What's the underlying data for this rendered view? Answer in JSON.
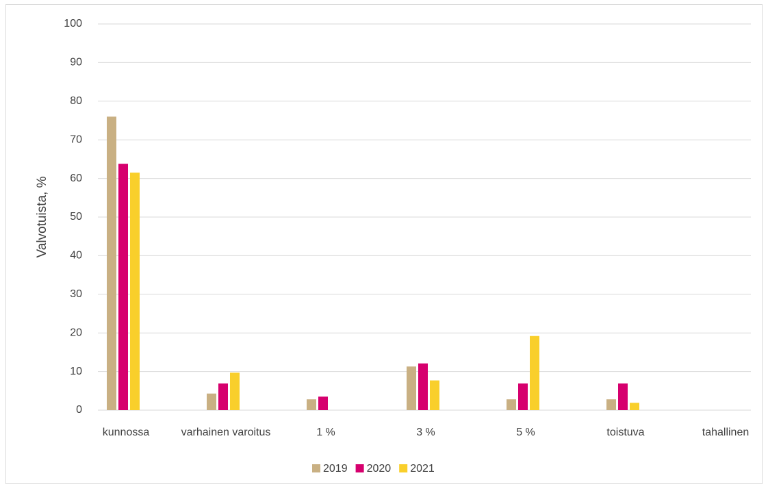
{
  "chart_data": {
    "type": "bar",
    "y_label": "Valvotuista, %",
    "categories": [
      "kunnossa",
      "varhainen varoitus",
      "1 %",
      "3 %",
      "5 %",
      "toistuva",
      "tahallinen"
    ],
    "series": [
      {
        "name": "2019",
        "color": "#c9b083",
        "values": [
          76,
          4.3,
          2.8,
          11.3,
          2.8,
          2.8,
          0
        ]
      },
      {
        "name": "2020",
        "color": "#d6006e",
        "values": [
          63.8,
          6.9,
          3.5,
          12.1,
          6.9,
          6.9,
          0
        ]
      },
      {
        "name": "2021",
        "color": "#f9cf2b",
        "values": [
          61.5,
          9.7,
          0,
          7.7,
          19.2,
          1.9,
          0
        ]
      }
    ],
    "ylim": [
      0,
      100
    ],
    "yticks": [
      0,
      10,
      20,
      30,
      40,
      50,
      60,
      70,
      80,
      90,
      100
    ],
    "grid": true,
    "legend": "bottom"
  }
}
